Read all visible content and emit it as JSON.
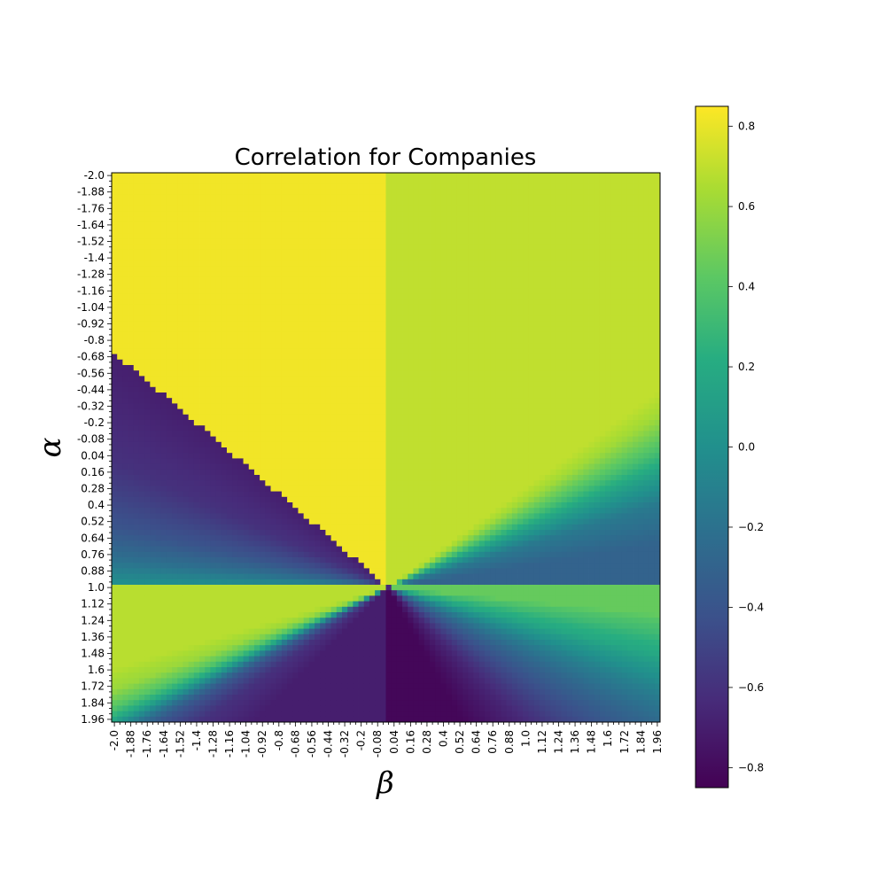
{
  "chart_data": {
    "type": "heatmap",
    "title": "Correlation for Companies",
    "xlabel": "β",
    "ylabel": "α",
    "x_range": [
      -2.0,
      1.96
    ],
    "y_range": [
      -2.0,
      1.96
    ],
    "x_tick_labels": [
      "-2.0",
      "-1.88",
      "-1.76",
      "-1.64",
      "-1.52",
      "-1.4",
      "-1.28",
      "-1.16",
      "-1.04",
      "-0.92",
      "-0.8",
      "-0.68",
      "-0.56",
      "-0.44",
      "-0.32",
      "-0.2",
      "-0.08",
      "0.04",
      "0.16",
      "0.28",
      "0.4",
      "0.52",
      "0.64",
      "0.76",
      "0.88",
      "1.0",
      "1.12",
      "1.24",
      "1.36",
      "1.48",
      "1.6",
      "1.72",
      "1.84",
      "1.96"
    ],
    "y_tick_labels": [
      "-2.0",
      "-1.88",
      "-1.76",
      "-1.64",
      "-1.52",
      "-1.4",
      "-1.28",
      "-1.16",
      "-1.04",
      "-0.92",
      "-0.8",
      "-0.68",
      "-0.56",
      "-0.44",
      "-0.32",
      "-0.2",
      "-0.08",
      "0.04",
      "0.16",
      "0.28",
      "0.4",
      "0.52",
      "0.64",
      "0.76",
      "0.88",
      "1.0",
      "1.12",
      "1.24",
      "1.36",
      "1.48",
      "1.6",
      "1.72",
      "1.84",
      "1.96"
    ],
    "colorbar": {
      "colormap": "viridis",
      "range": [
        -0.85,
        0.85
      ],
      "tick_labels": [
        "0.8",
        "0.6",
        "0.4",
        "0.2",
        "0.0",
        "−0.2",
        "−0.4",
        "−0.6",
        "−0.8"
      ],
      "tick_values": [
        0.8,
        0.6,
        0.4,
        0.2,
        0.0,
        -0.2,
        -0.4,
        -0.6,
        -0.8
      ]
    },
    "regions": [
      {
        "region": "alpha < 1, beta < 0 (upper-left wedge)",
        "value": 0.82
      },
      {
        "region": "alpha < 1, beta > 0 (upper-right)",
        "value": 0.72
      },
      {
        "region": "alpha > 1, beta < 0 (lower-left)",
        "value": -0.7
      },
      {
        "region": "alpha > 1, beta > 0 near beta=0 (lower-middle)",
        "value": -0.82
      },
      {
        "region": "alpha > 1, beta = 2 (lower-right edge)",
        "value": -0.3
      }
    ],
    "grid": false
  }
}
